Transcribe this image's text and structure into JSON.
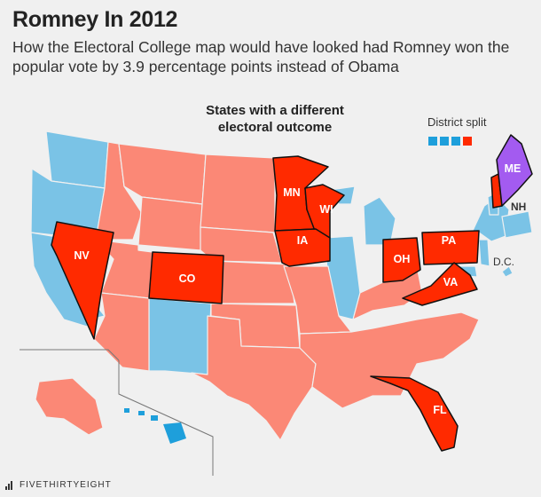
{
  "header": {
    "title": "Romney In 2012",
    "subtitle": "How the Electoral College map would have looked had Romney won the popular vote by 3.9 percentage points instead of Obama"
  },
  "annotation": {
    "line1": "States with a different",
    "line2": "electoral outcome"
  },
  "legend": {
    "district_split_label": "District split",
    "district_boxes": [
      "#1e9fdb",
      "#1e9fdb",
      "#1e9fdb",
      "#ff2a00"
    ]
  },
  "colors": {
    "republican": "#fb8876",
    "democrat": "#7ac3e6",
    "flipped": "#ff2a00",
    "split": "#a35bf0",
    "hawaii": "#1e9fdb"
  },
  "flipped_states": [
    {
      "abbr": "NV"
    },
    {
      "abbr": "CO"
    },
    {
      "abbr": "MN"
    },
    {
      "abbr": "WI"
    },
    {
      "abbr": "IA"
    },
    {
      "abbr": "OH"
    },
    {
      "abbr": "PA"
    },
    {
      "abbr": "VA"
    },
    {
      "abbr": "FL"
    },
    {
      "abbr": "NH"
    }
  ],
  "split_state": {
    "abbr": "ME"
  },
  "other_labels": {
    "dc": "D.C.",
    "nh": "NH"
  },
  "footer": {
    "brand": "FIVETHIRTYEIGHT"
  }
}
